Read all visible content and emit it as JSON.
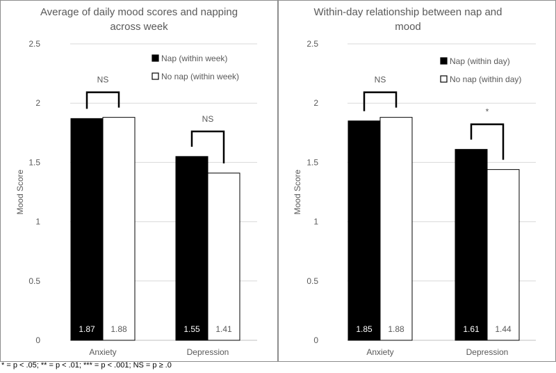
{
  "footnote": "* = p < .05; ** = p < .01; *** = p < .001; NS = p ≥ .0",
  "colors": {
    "nap": "#000000",
    "no_nap": "#ffffff",
    "text": "#595959",
    "label_on_dark": "#ffffff"
  },
  "chart_data": [
    {
      "type": "bar",
      "title_lines": [
        "Average of daily mood scores and napping",
        "across week"
      ],
      "ylabel": "Mood Score",
      "ylim": [
        0,
        2.5
      ],
      "yticks": [
        "0",
        "0.5",
        "1",
        "1.5",
        "2",
        "2.5"
      ],
      "categories": [
        "Anxiety",
        "Depression"
      ],
      "series": [
        {
          "name": "Nap (within week)",
          "values": [
            1.87,
            1.55
          ],
          "labels": [
            "1.87",
            "1.55"
          ]
        },
        {
          "name": "No nap (within week)",
          "values": [
            1.88,
            1.41
          ],
          "labels": [
            "1.88",
            "1.41"
          ]
        }
      ],
      "significance": [
        "NS",
        "NS"
      ],
      "legend": "top-right",
      "grid": true
    },
    {
      "type": "bar",
      "title_lines": [
        "Within-day relationship between nap and",
        "mood"
      ],
      "ylabel": "Mood Score",
      "ylim": [
        0,
        2.5
      ],
      "yticks": [
        "0",
        "0.5",
        "1",
        "1.5",
        "2",
        "2.5"
      ],
      "categories": [
        "Anxiety",
        "Depression"
      ],
      "series": [
        {
          "name": "Nap (within day)",
          "values": [
            1.85,
            1.61
          ],
          "labels": [
            "1.85",
            "1.61"
          ]
        },
        {
          "name": "No nap (within day)",
          "values": [
            1.88,
            1.44
          ],
          "labels": [
            "1.88",
            "1.44"
          ]
        }
      ],
      "significance": [
        "NS",
        "*"
      ],
      "legend": "top-right",
      "grid": true
    }
  ]
}
